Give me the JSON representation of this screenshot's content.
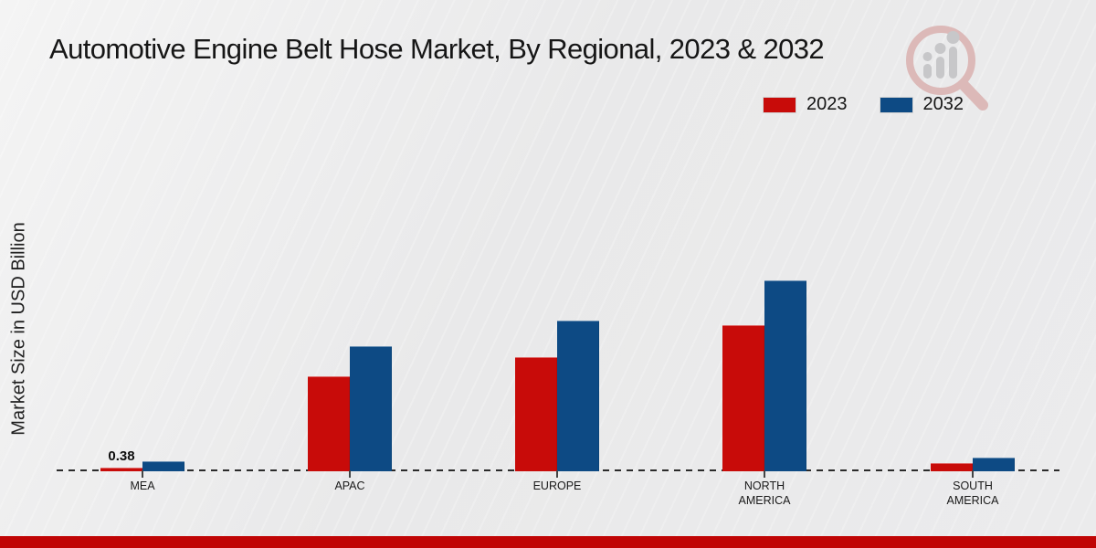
{
  "chart_data": {
    "type": "bar",
    "title": "Automotive Engine Belt Hose Market, By Regional, 2023 & 2032",
    "ylabel": "Market Size in USD Billion",
    "xlabel": "",
    "categories": [
      "MEA",
      "APAC",
      "EUROPE",
      "NORTH\nAMERICA",
      "SOUTH\nAMERICA"
    ],
    "series": [
      {
        "name": "2023",
        "color": "#c80b09",
        "values": [
          0.38,
          10.4,
          12.5,
          16.0,
          0.9
        ],
        "data_labels": [
          "0.38",
          "",
          "",
          "",
          ""
        ]
      },
      {
        "name": "2032",
        "color": "#0d4a84",
        "values": [
          1.1,
          13.7,
          16.5,
          20.9,
          1.5
        ],
        "data_labels": [
          "",
          "",
          "",
          "",
          ""
        ]
      }
    ],
    "ylim": [
      0,
      22
    ],
    "grid": "off",
    "axes_visible": false,
    "baseline_style": "dashed",
    "legend_position": "top-right"
  },
  "branding": {
    "watermark_icon": "magnifier-bar-chart-logo",
    "watermark_ring_color": "#dcb9b8",
    "watermark_glyph_color": "#c7c7c9",
    "footer_color": "#c00505"
  }
}
